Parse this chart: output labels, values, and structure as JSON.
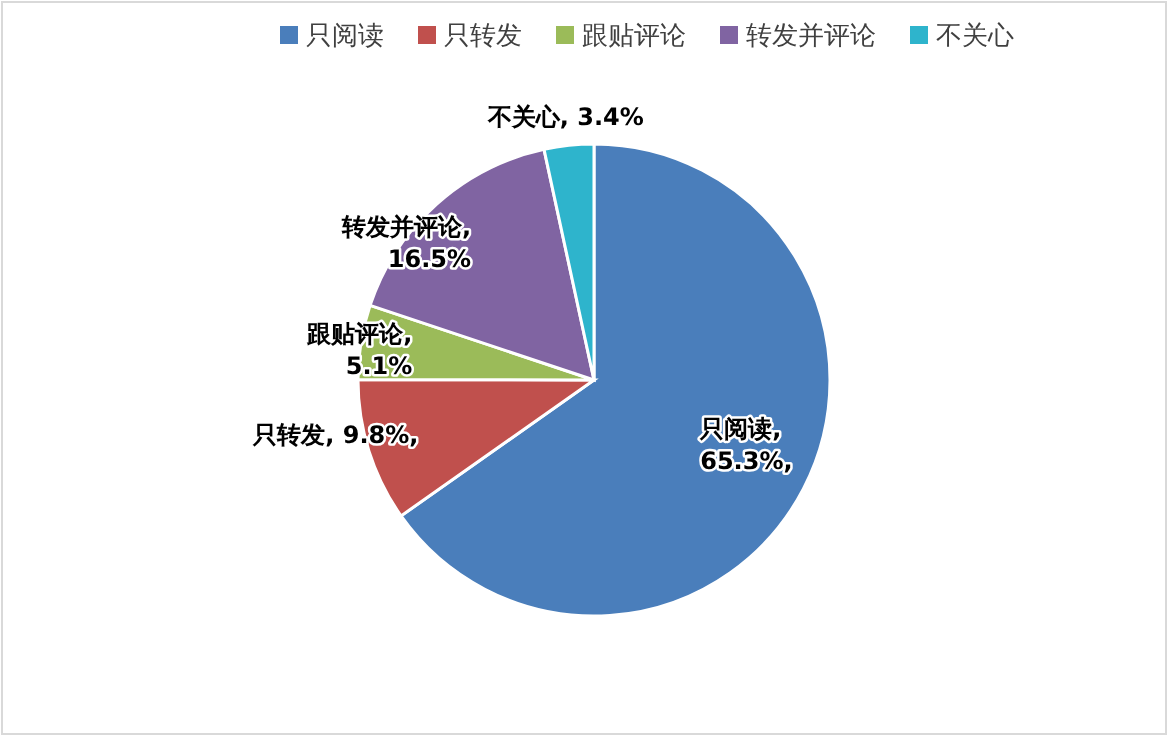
{
  "chart_data": {
    "type": "pie",
    "categories": [
      "只阅读",
      "只转发",
      "跟贴评论",
      "转发并评论",
      "不关心"
    ],
    "values": [
      65.3,
      9.8,
      5.1,
      16.5,
      3.4
    ],
    "colors": [
      "#4a7ebb",
      "#c0504d",
      "#9bbb59",
      "#8064a2",
      "#2eb4cc"
    ],
    "value_labels": [
      "只阅读,\n65.3%,",
      "只转发, 9.8%,",
      "跟贴评论,\n5.1%",
      "转发并评论,\n16.5%",
      "不关心, 3.4%"
    ],
    "legend": "top"
  }
}
